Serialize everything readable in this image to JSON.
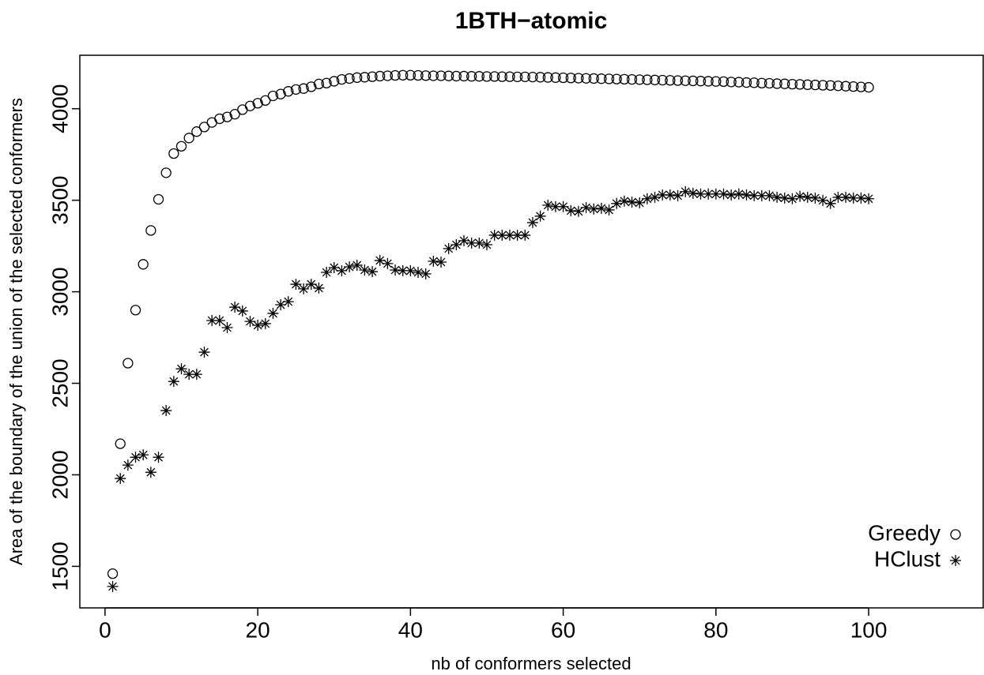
{
  "chart_data": {
    "type": "scatter",
    "title": "1BTH−atomic",
    "x_label": "nb of conformers selected",
    "y_label": "Area of the boundary of the union of the selected conformers",
    "x": [
      1,
      2,
      3,
      4,
      5,
      6,
      7,
      8,
      9,
      10,
      11,
      12,
      13,
      14,
      15,
      16,
      17,
      18,
      19,
      20,
      21,
      22,
      23,
      24,
      25,
      26,
      27,
      28,
      29,
      30,
      31,
      32,
      33,
      34,
      35,
      36,
      37,
      38,
      39,
      40,
      41,
      42,
      43,
      44,
      45,
      46,
      47,
      48,
      49,
      50,
      51,
      52,
      53,
      54,
      55,
      56,
      57,
      58,
      59,
      60,
      61,
      62,
      63,
      64,
      65,
      66,
      67,
      68,
      69,
      70,
      71,
      72,
      73,
      74,
      75,
      76,
      77,
      78,
      79,
      80,
      81,
      82,
      83,
      84,
      85,
      86,
      87,
      88,
      89,
      90,
      91,
      92,
      93,
      94,
      95,
      96,
      97,
      98,
      99,
      100
    ],
    "series": [
      {
        "name": "Greedy",
        "marker": "circle",
        "color": "#000000",
        "values": [
          1460,
          2170,
          2610,
          2900,
          3150,
          3335,
          3505,
          3650,
          3755,
          3795,
          3840,
          3875,
          3900,
          3925,
          3945,
          3955,
          3970,
          3995,
          4015,
          4030,
          4045,
          4070,
          4080,
          4095,
          4105,
          4110,
          4120,
          4135,
          4140,
          4150,
          4160,
          4165,
          4170,
          4172,
          4175,
          4178,
          4180,
          4182,
          4183,
          4183,
          4182,
          4181,
          4180,
          4180,
          4179,
          4178,
          4178,
          4177,
          4177,
          4176,
          4176,
          4175,
          4175,
          4174,
          4174,
          4173,
          4172,
          4171,
          4170,
          4169,
          4168,
          4167,
          4166,
          4165,
          4164,
          4163,
          4162,
          4161,
          4160,
          4159,
          4158,
          4157,
          4156,
          4155,
          4154,
          4153,
          4152,
          4151,
          4150,
          4149,
          4148,
          4146,
          4145,
          4143,
          4142,
          4140,
          4139,
          4137,
          4136,
          4134,
          4133,
          4131,
          4130,
          4128,
          4127,
          4125,
          4123,
          4121,
          4119,
          4117
        ]
      },
      {
        "name": "HClust",
        "marker": "asterisk",
        "color": "#000000",
        "values": [
          1390,
          1980,
          2053,
          2096,
          2109,
          2014,
          2096,
          2351,
          2510,
          2579,
          2549,
          2549,
          2670,
          2843,
          2843,
          2804,
          2916,
          2895,
          2838,
          2817,
          2826,
          2882,
          2929,
          2946,
          3041,
          3016,
          3041,
          3020,
          3106,
          3132,
          3115,
          3136,
          3145,
          3119,
          3110,
          3171,
          3154,
          3119,
          3115,
          3115,
          3106,
          3098,
          3167,
          3162,
          3236,
          3257,
          3279,
          3266,
          3266,
          3257,
          3309,
          3309,
          3309,
          3309,
          3309,
          3378,
          3413,
          3473,
          3465,
          3465,
          3443,
          3439,
          3460,
          3452,
          3456,
          3447,
          3482,
          3495,
          3490,
          3486,
          3508,
          3516,
          3529,
          3529,
          3525,
          3547,
          3538,
          3534,
          3534,
          3534,
          3534,
          3529,
          3534,
          3529,
          3525,
          3525,
          3525,
          3516,
          3512,
          3508,
          3521,
          3516,
          3512,
          3499,
          3482,
          3516,
          3516,
          3512,
          3512,
          3508
        ]
      }
    ],
    "xlim": [
      -3.3,
      115
    ],
    "ylim": [
      1273,
      4292
    ],
    "xticks": [
      0,
      20,
      40,
      60,
      80,
      100
    ],
    "yticks": [
      1500,
      2000,
      2500,
      3000,
      3500,
      4000
    ],
    "legend": "bottom-right"
  }
}
